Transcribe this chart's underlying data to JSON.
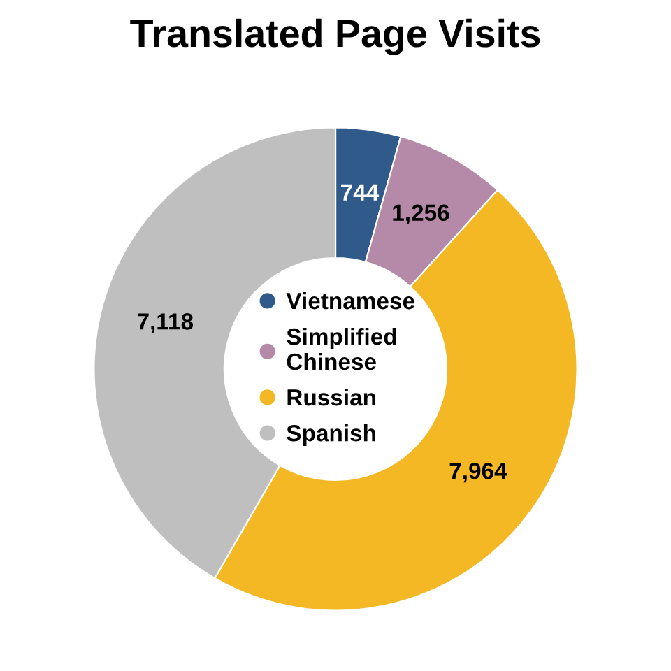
{
  "chart_data": {
    "type": "donut",
    "title": "Translated Page Visits",
    "categories": [
      "Vietnamese",
      "Simplified\nChinese",
      "Russian",
      "Spanish"
    ],
    "values": [
      744,
      1256,
      7964,
      7118
    ],
    "colors": [
      "#2f5a8a",
      "#b48aa8",
      "#f4b825",
      "#bfbfbf"
    ],
    "value_labels": [
      "744",
      "1,256",
      "7,964",
      "7,118"
    ],
    "legend": "center"
  }
}
